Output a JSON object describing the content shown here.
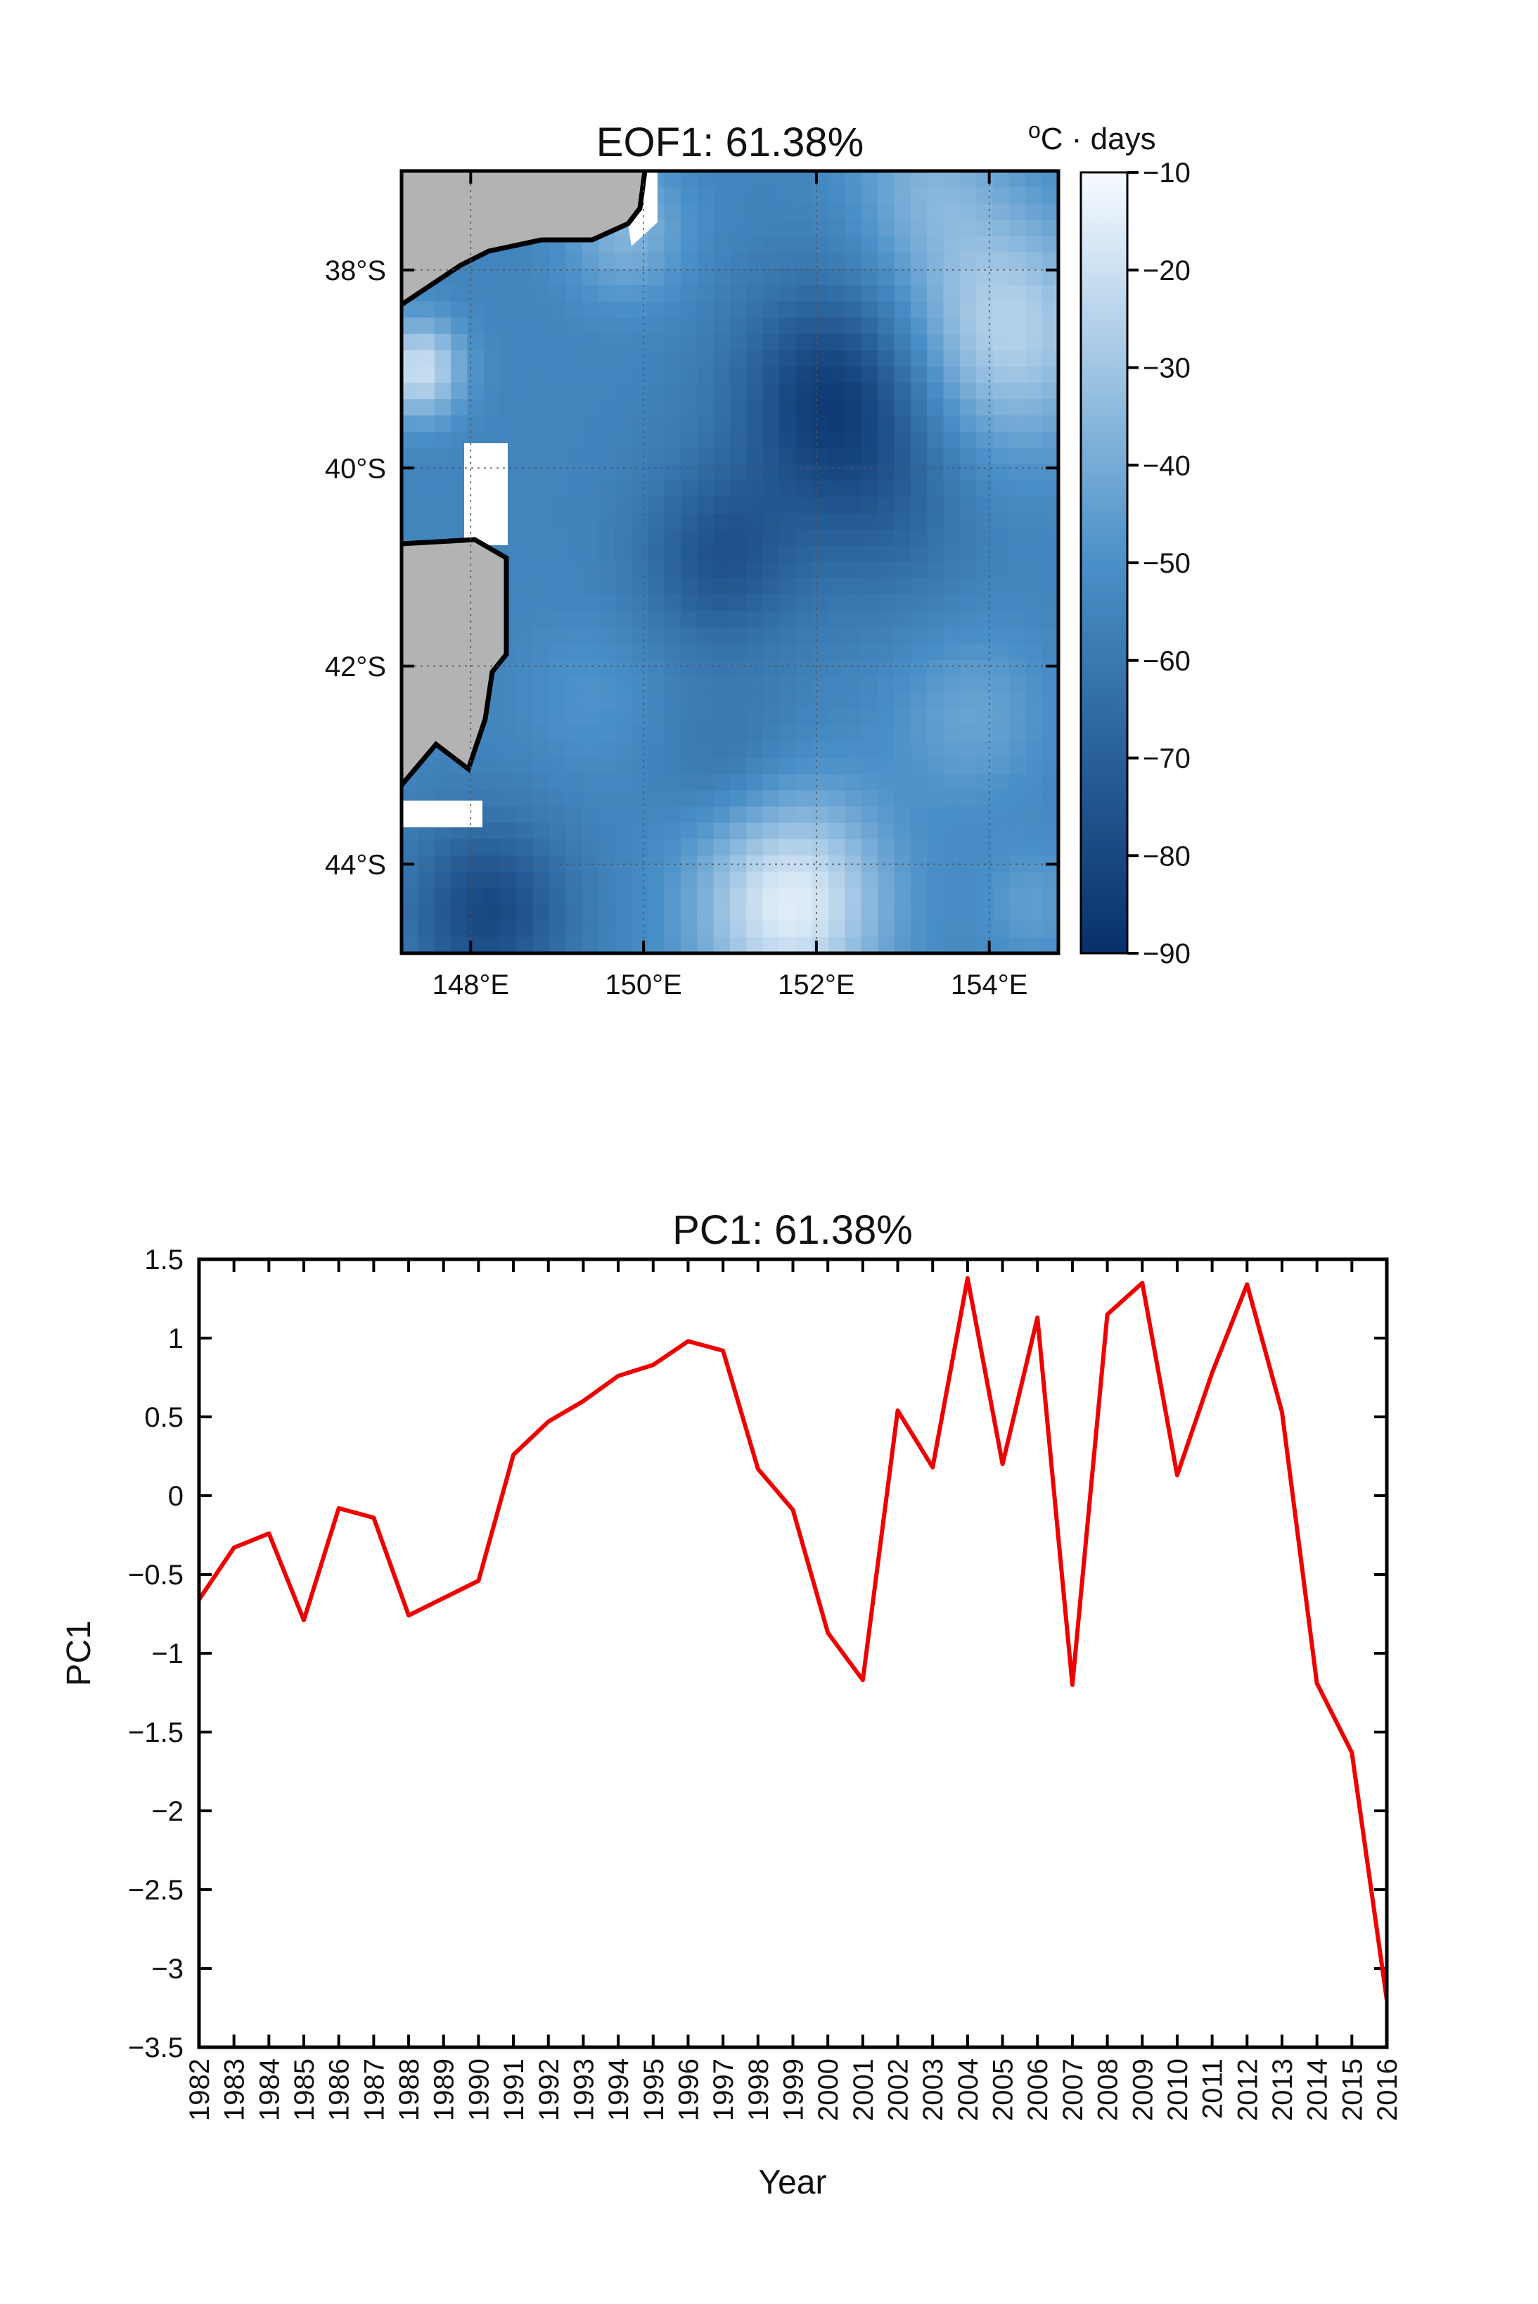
{
  "chart_data": [
    {
      "type": "heatmap",
      "title": "EOF1: 61.38%",
      "colorbar": {
        "label": "oC · days",
        "label_base": "o",
        "label_rest": "C · days",
        "min": -90,
        "max": -10,
        "ticks": [
          -10,
          -20,
          -30,
          -40,
          -50,
          -60,
          -70,
          -80,
          -90
        ],
        "tick_labels": [
          "−10",
          "−20",
          "−30",
          "−40",
          "−50",
          "−60",
          "−70",
          "−80",
          "−90"
        ],
        "color_low": "#08306b",
        "color_mid": "#4a90c8",
        "color_high": "#f7fbff"
      },
      "lon_range": [
        147.2,
        154.8
      ],
      "lat_range": [
        -44.9,
        -37.0
      ],
      "xticks": [
        148,
        150,
        152,
        154
      ],
      "xtick_labels": [
        "148°E",
        "150°E",
        "152°E",
        "154°E"
      ],
      "yticks": [
        -38,
        -40,
        -42,
        -44
      ],
      "ytick_labels": [
        "38°S",
        "40°S",
        "42°S",
        "44°S"
      ],
      "grid": "dotted",
      "land_color": "#b3b3b3",
      "field_base": -55,
      "anomalies": [
        {
          "lon": 152.2,
          "lat": -39.3,
          "value": -30,
          "r": 1.1
        },
        {
          "lon": 150.9,
          "lat": -40.9,
          "value": -20,
          "r": 0.9
        },
        {
          "lon": 152.8,
          "lat": -40.5,
          "value": -10,
          "r": 1.0
        },
        {
          "lon": 148.2,
          "lat": -44.5,
          "value": -25,
          "r": 0.9
        },
        {
          "lon": 151.0,
          "lat": -43.0,
          "value": -8,
          "r": 0.8
        },
        {
          "lon": 151.7,
          "lat": -44.4,
          "value": 40,
          "r": 1.1
        },
        {
          "lon": 154.2,
          "lat": -38.6,
          "value": 30,
          "r": 1.2
        },
        {
          "lon": 147.4,
          "lat": -39.0,
          "value": 35,
          "r": 0.5
        },
        {
          "lon": 153.8,
          "lat": -42.5,
          "value": 12,
          "r": 0.9
        },
        {
          "lon": 153.3,
          "lat": -37.1,
          "value": 15,
          "r": 0.9
        },
        {
          "lon": 149.8,
          "lat": -37.6,
          "value": 18,
          "r": 0.7
        },
        {
          "lon": 154.5,
          "lat": -44.4,
          "value": 10,
          "r": 0.6
        },
        {
          "lon": 149.4,
          "lat": -42.3,
          "value": 6,
          "r": 0.8
        }
      ]
    },
    {
      "type": "line",
      "title": "PC1: 61.38%",
      "xlabel": "Year",
      "ylabel": "PC1",
      "series_color": "#ee0000",
      "xlim": [
        1982,
        2016
      ],
      "ylim": [
        -3.5,
        1.5
      ],
      "yticks": [
        1.5,
        1,
        0.5,
        0,
        -0.5,
        -1,
        -1.5,
        -2,
        -2.5,
        -3,
        -3.5
      ],
      "ytick_labels": [
        "1.5",
        "1",
        "0.5",
        "0",
        "−0.5",
        "−1",
        "−1.5",
        "−2",
        "−2.5",
        "−3",
        "−3.5"
      ],
      "x": [
        1982,
        1983,
        1984,
        1985,
        1986,
        1987,
        1988,
        1989,
        1990,
        1991,
        1992,
        1993,
        1994,
        1995,
        1996,
        1997,
        1998,
        1999,
        2000,
        2001,
        2002,
        2003,
        2004,
        2005,
        2006,
        2007,
        2008,
        2009,
        2010,
        2011,
        2012,
        2013,
        2014,
        2015,
        2016
      ],
      "xtick_labels": [
        "1982",
        "1983",
        "1984",
        "1985",
        "1986",
        "1987",
        "1988",
        "1989",
        "1990",
        "1991",
        "1992",
        "1993",
        "1994",
        "1995",
        "1996",
        "1997",
        "1998",
        "1999",
        "2000",
        "2001",
        "2002",
        "2003",
        "2004",
        "2005",
        "2006",
        "2007",
        "2008",
        "2009",
        "2010",
        "2011",
        "2012",
        "2013",
        "2014",
        "2015",
        "2016"
      ],
      "y": [
        -0.66,
        -0.33,
        -0.24,
        -0.79,
        -0.08,
        -0.14,
        -0.76,
        -0.65,
        -0.54,
        0.26,
        0.47,
        0.6,
        0.76,
        0.83,
        0.98,
        0.92,
        0.17,
        -0.09,
        -0.87,
        -1.17,
        0.54,
        0.18,
        1.38,
        0.2,
        1.13,
        -1.2,
        1.15,
        1.35,
        0.13,
        0.78,
        1.34,
        0.53,
        -1.19,
        -1.63,
        -3.2
      ]
    }
  ]
}
